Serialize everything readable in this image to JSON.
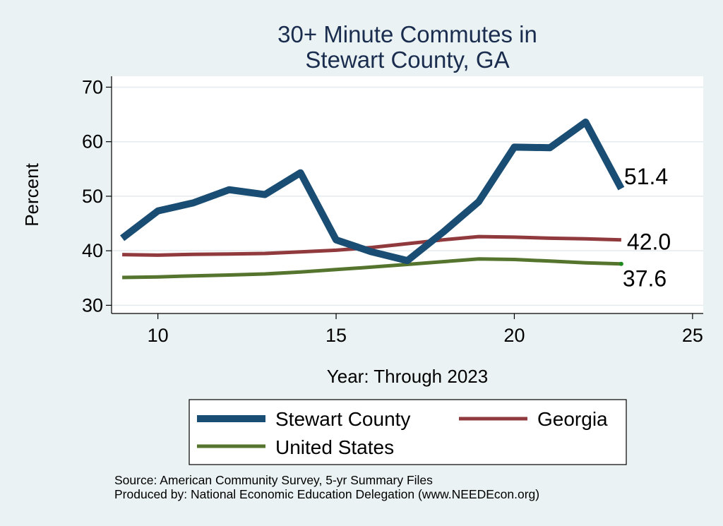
{
  "chart_data": {
    "type": "line",
    "title": [
      "30+ Minute Commutes in",
      "Stewart County, GA"
    ],
    "xlabel": "Year: Through 2023",
    "ylabel": "Percent",
    "xlim": [
      8.7,
      25.3
    ],
    "ylim": [
      28.5,
      72
    ],
    "xticks": [
      10,
      15,
      20,
      25
    ],
    "yticks": [
      30,
      40,
      50,
      60,
      70
    ],
    "grid": true,
    "legend_position": "bottom",
    "x": [
      9,
      10,
      11,
      12,
      13,
      14,
      15,
      16,
      17,
      18,
      19,
      20,
      21,
      22,
      23
    ],
    "series": [
      {
        "name": "Stewart County",
        "color": "#1a4d73",
        "values": [
          42.3,
          47.3,
          48.8,
          51.2,
          50.3,
          54.3,
          42.0,
          39.8,
          38.2,
          43.4,
          49.0,
          59.0,
          58.9,
          63.6,
          51.4
        ],
        "end_label": "51.4"
      },
      {
        "name": "Georgia",
        "color": "#913a3e",
        "values": [
          39.3,
          39.2,
          39.35,
          39.4,
          39.5,
          39.8,
          40.1,
          40.6,
          41.3,
          42.0,
          42.6,
          42.5,
          42.3,
          42.2,
          42.0
        ],
        "end_label": "42.0"
      },
      {
        "name": "United States",
        "color": "#55752f",
        "values": [
          35.1,
          35.2,
          35.4,
          35.55,
          35.75,
          36.1,
          36.55,
          37.0,
          37.5,
          38.0,
          38.5,
          38.4,
          38.1,
          37.8,
          37.6
        ],
        "end_label": "37.6"
      }
    ],
    "source": [
      "Source: American Community Survey, 5-yr Summary Files",
      "Produced by: National Economic Education Delegation (www.NEEDEcon.org)"
    ]
  }
}
